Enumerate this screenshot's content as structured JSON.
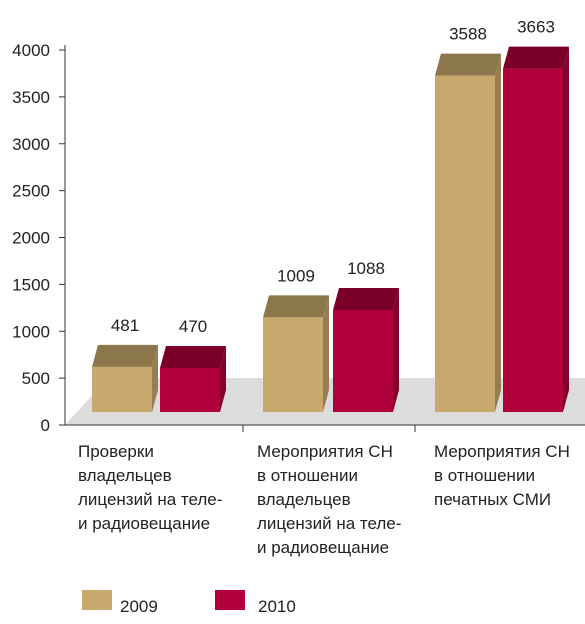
{
  "chart_data": {
    "type": "bar3d",
    "categories": [
      [
        "Проверки",
        "владельцев",
        "лицензий на теле-",
        "и радиовещание"
      ],
      [
        "Мероприятия СН",
        "в отношении",
        "владельцев",
        "лицензий на теле-",
        "и радиовещание"
      ],
      [
        "Мероприятия СН",
        "в отношении",
        "печатных СМИ"
      ]
    ],
    "series": [
      {
        "name": "2009",
        "color": "#c8a86d",
        "values": [
          481,
          1009,
          3588
        ]
      },
      {
        "name": "2010",
        "color": "#b0003a",
        "values": [
          470,
          1088,
          3663
        ]
      }
    ],
    "ylim": [
      0,
      4000
    ],
    "yticks": [
      0,
      500,
      1000,
      1500,
      2000,
      2500,
      3000,
      3500,
      4000
    ],
    "legend": "bottom"
  }
}
